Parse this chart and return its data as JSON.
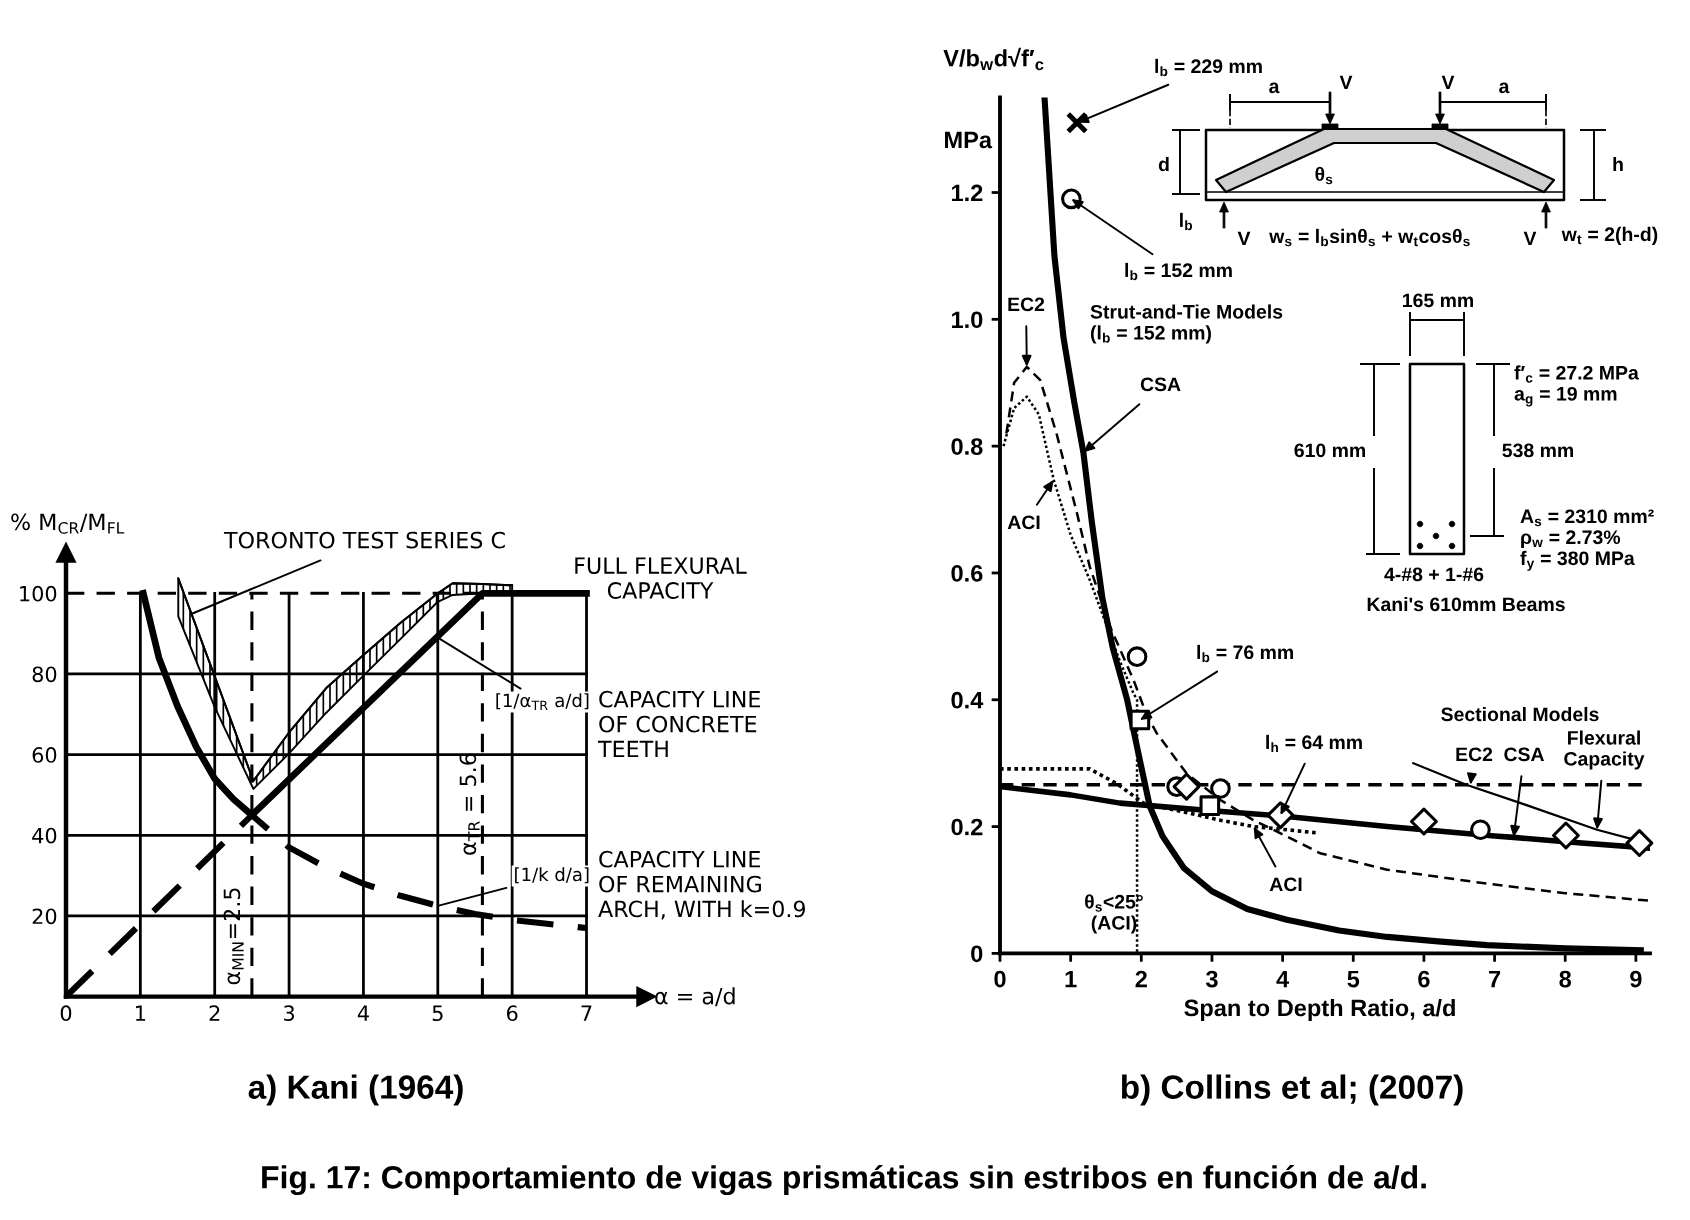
{
  "chart_data": [
    {
      "type": "line",
      "title": "a) Kani (1964)",
      "xlabel": "α = a/d",
      "ylabel": "% M$_{CR}$/M$_{FL}$",
      "xlim": [
        0,
        7.8
      ],
      "ylim": [
        0,
        110
      ],
      "xticks": [
        0,
        1,
        2,
        3,
        4,
        5,
        6,
        7
      ],
      "yticks": [
        20,
        40,
        60,
        80,
        100
      ],
      "grid": true,
      "series": [
        {
          "color": "#000000",
          "line_style": "solid",
          "x": [
            1.04,
            1.25,
            1.5,
            1.75,
            2.0,
            2.25,
            2.5,
            5.6,
            7.0
          ],
          "values": [
            100,
            84,
            72,
            62,
            54,
            49,
            45,
            100,
            100
          ]
        },
        {
          "color": "#000000",
          "line_style": "dashed",
          "x": [
            0,
            2.5,
            3,
            3.5,
            4,
            4.5,
            5,
            5.5,
            6,
            6.5,
            7
          ],
          "values": [
            0,
            45,
            37,
            32,
            28,
            25,
            22.5,
            20.5,
            19,
            18,
            17
          ]
        },
        {
          "color": "#000000",
          "line_style": "solid",
          "x": [
            1.51,
            2.0,
            2.52,
            3.0,
            3.5,
            4.0,
            4.5,
            5.0,
            5.2,
            5.6,
            6.0
          ],
          "values": [
            103.7,
            79.4,
            53.5,
            65.5,
            76.5,
            84.7,
            92.7,
            100,
            102.5,
            102.3,
            102
          ],
          "lower": [
            94.3,
            71.8,
            51.5,
            60.3,
            70.4,
            79.6,
            88.7,
            97.9,
            99.6,
            100,
            100
          ],
          "upper": [
            103.7,
            79.4,
            53.5,
            65.5,
            76.5,
            84.7,
            92.7,
            100,
            102.5,
            102.3,
            102
          ]
        }
      ],
      "ref_lines": [
        {
          "axis": "x",
          "value": 2.5,
          "label": "α$_{MIN}$=2.5",
          "line_style": "dashed",
          "color": "#000000"
        },
        {
          "axis": "x",
          "value": 5.6,
          "label": "α$_{TR}$ = 5.6",
          "line_style": "dashed",
          "color": "#000000"
        },
        {
          "axis": "y",
          "value": 100,
          "line_style": "dashed",
          "color": "#000000"
        }
      ],
      "annotations": [
        {
          "text": "TORONTO TEST SERIES C",
          "x": 1.7,
          "y": 95
        },
        {
          "text": "FULL FLEXURAL\nCAPACITY",
          "x": 6.4,
          "y": 100
        },
        {
          "text": "[1/α$_{TR}$ a/d]",
          "x": 5.0,
          "y": 89
        },
        "CAPACITY LINE\nOF CONCRETE\nTEETH",
        {
          "text": "[1/k d/a]",
          "x": 5.0,
          "y": 22.5
        },
        "CAPACITY LINE\nOF REMAINING\nARCH, WITH k=0.9",
        "Fig. 17: Comportamiento de vigas prismáticas sin estribos en función de a/d."
      ]
    },
    {
      "type": "line",
      "title": "b) Collins et al; (2007)",
      "xlabel": "Span to Depth Ratio, a/d",
      "ylabel": "V/b$_{w}$d√f′$_{c}$\nMPa",
      "xlim": [
        0,
        9.2
      ],
      "ylim": [
        0,
        1.35
      ],
      "xticks": [
        0,
        1,
        2,
        3,
        4,
        5,
        6,
        7,
        8,
        9
      ],
      "yticks": [
        0,
        0.2,
        0.4,
        0.6,
        0.8,
        {
          "value": 1.0,
          "label": "1.0"
        },
        1.2
      ],
      "series": [
        {
          "color": "#000000",
          "line_style": "solid",
          "x": [
            0.63,
            0.77,
            0.9,
            1.05,
            1.18,
            1.3,
            1.45,
            1.6,
            1.8,
            1.95,
            2.12,
            2.3,
            2.6,
            3.0,
            3.5,
            4.06,
            4.8,
            5.48,
            6.2,
            6.89,
            8.0,
            9.07
          ],
          "values": [
            1.35,
            1.1,
            0.97,
            0.87,
            0.79,
            0.68,
            0.56,
            0.48,
            0.4,
            0.32,
            0.232,
            0.185,
            0.135,
            0.098,
            0.07,
            0.053,
            0.036,
            0.026,
            0.019,
            0.013,
            0.008,
            0.005
          ]
        },
        {
          "color": "#000000",
          "line_style": "dashed",
          "x": [
            0.09,
            0.2,
            0.38,
            0.57,
            0.8,
            1.09,
            1.27,
            1.56,
            1.89,
            2.08,
            2.22,
            2.64,
            3.12,
            3.59,
            3.87,
            4.53,
            5.48,
            6.89,
            8.0,
            9.2
          ],
          "values": [
            0.82,
            0.9,
            0.925,
            0.904,
            0.82,
            0.694,
            0.61,
            0.515,
            0.431,
            0.375,
            0.347,
            0.284,
            0.242,
            0.21,
            0.195,
            0.158,
            0.132,
            0.11,
            0.095,
            0.083
          ]
        },
        {
          "color": "#000000",
          "line_style": "dotted",
          "x": [
            0.05,
            0.2,
            0.38,
            0.55,
            0.76,
            1.0,
            1.27,
            1.5,
            1.7,
            1.89,
            1.94,
            1.94
          ],
          "values": [
            0.8,
            0.86,
            0.878,
            0.85,
            0.747,
            0.66,
            0.589,
            0.52,
            0.46,
            0.41,
            0.4,
            0
          ]
        },
        {
          "color": "#000000",
          "line_style": "dashed",
          "x": [
            0,
            9.2
          ],
          "values": [
            0.266,
            0.266
          ]
        },
        {
          "color": "#000000",
          "line_style": "solid",
          "x": [
            0,
            1,
            1.7,
            3,
            4.06,
            5.48,
            7,
            7.27,
            8,
            9.2
          ],
          "values": [
            0.263,
            0.25,
            0.237,
            0.225,
            0.216,
            0.2,
            0.185,
            0.183,
            0.176,
            0.166
          ]
        },
        {
          "color": "#000000",
          "line_style": "dotted",
          "x": [
            0,
            0.5,
            1.27,
            1.65,
            2.03,
            2.27,
            2.69,
            3.12,
            3.59,
            4.06,
            4.5
          ],
          "values": [
            0.291,
            0.291,
            0.291,
            0.268,
            0.237,
            0.231,
            0.221,
            0.21,
            0.2,
            0.195,
            0.19
          ]
        },
        {
          "color": "#000000",
          "line_style": "solid",
          "x": [
            5.85,
            6.6,
            7.37,
            8.45,
            9.16
          ],
          "values": [
            0.3,
            0.266,
            0.237,
            0.195,
            0.174
          ]
        },
        {
          "type": "scatter",
          "marker": "cross",
          "color": "#000000",
          "x": [
            1.09
          ],
          "values": [
            1.31
          ]
        },
        {
          "type": "scatter",
          "marker": "circle",
          "color": "#000000",
          "x": [
            1.01,
            1.94,
            2.5,
            3.12,
            6.8
          ],
          "values": [
            1.19,
            0.468,
            0.263,
            0.26,
            0.195
          ]
        },
        {
          "type": "scatter",
          "marker": "square",
          "color": "#000000",
          "x": [
            1.98,
            2.97
          ],
          "values": [
            0.368,
            0.233
          ]
        },
        {
          "type": "scatter",
          "marker": "diamond",
          "color": "#000000",
          "x": [
            2.64,
            3.97,
            6.0,
            8.01,
            9.05
          ],
          "values": [
            0.263,
            0.218,
            0.208,
            0.186,
            0.174
          ]
        }
      ],
      "annotations": [
        {
          "text": "l$_{b}$ = 229 mm",
          "x": 1.09,
          "y": 1.31
        },
        {
          "text": "l$_{b}$ = 152 mm",
          "x": 1.01,
          "y": 1.19
        },
        {
          "text": "EC2",
          "x": 0.38,
          "y": 0.925
        },
        "Strut-and-Tie Models\n(l$_{b}$ = 152 mm)",
        {
          "text": "CSA",
          "x": 1.18,
          "y": 0.79
        },
        {
          "text": "ACI",
          "x": 0.76,
          "y": 0.747
        },
        {
          "text": "l$_{b}$ = 76 mm",
          "x": 1.98,
          "y": 0.368
        },
        "Sectional Models",
        {
          "text": "l$_{h}$ = 64 mm",
          "x": 3.97,
          "y": 0.218
        },
        {
          "text": "EC2",
          "x": 6.66,
          "y": 0.266
        },
        {
          "text": "CSA",
          "x": 7.27,
          "y": 0.183
        },
        {
          "text": "Flexural\nCapacity",
          "x": 8.45,
          "y": 0.195
        },
        {
          "text": "ACI",
          "x": 3.59,
          "y": 0.2
        },
        {
          "text": "θ$_{s}$<25°\n(ACI)",
          "x": 1.94,
          "y": 0.1
        },
        "a",
        "V",
        "V",
        "a",
        "d",
        "h",
        "θ$_{s}$",
        "l$_{b}$",
        "V",
        "w$_{s}$ = l$_{b}$sinθ$_{s}$ + w$_{t}$cosθ$_{s}$",
        "V",
        "w$_{t}$ = 2(h-d)",
        "165 mm",
        "f′$_{c}$ = 27.2 MPa\na$_{g}$ = 19 mm",
        "610 mm",
        "538 mm",
        "A$_{s}$ = 2310 mm²\nρ$_{w}$ = 2.73%\nf$_{y}$ = 380 MPa",
        "4-#8 + 1-#6",
        "Kani's 610mm Beams"
      ]
    }
  ]
}
